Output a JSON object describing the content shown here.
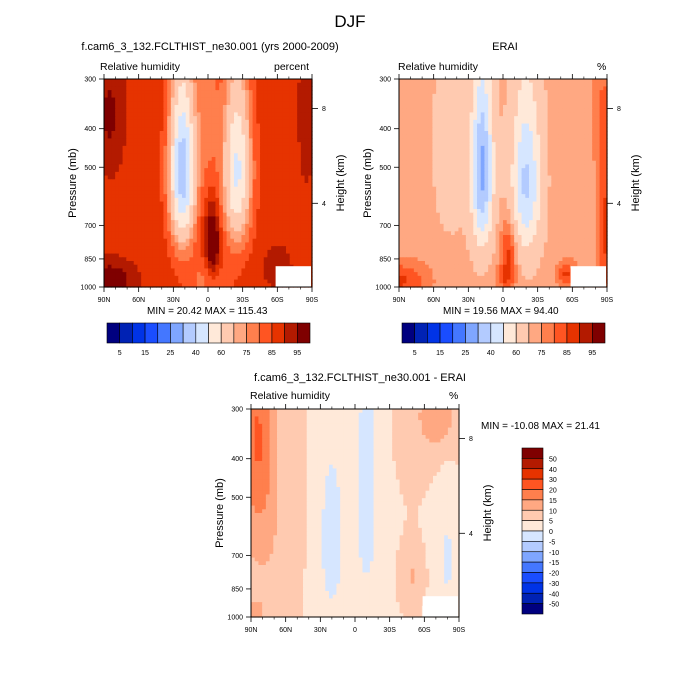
{
  "figure": {
    "title": "DJF"
  },
  "chart_data": [
    {
      "type": "heatmap",
      "panel": "model",
      "title": "f.cam6_3_132.FCLTHIST_ne30.001 (yrs 2000-2009)",
      "left_string": "Relative humidity",
      "right_string": "percent",
      "xlabel": "",
      "ylabel": "Pressure (mb)",
      "y2label": "Height (km)",
      "x_ticks": [
        "90N",
        "60N",
        "30N",
        "0",
        "30S",
        "60S",
        "90S"
      ],
      "x_range": [
        90,
        -90
      ],
      "y_ticks": [
        "300",
        "400",
        "500",
        "700",
        "850",
        "1000"
      ],
      "y_tick_values": [
        300,
        400,
        500,
        700,
        850,
        1000
      ],
      "y_range_mb": [
        300,
        1000
      ],
      "y2_ticks": [
        "8",
        "4"
      ],
      "min_label": "MIN =  20.42  MAX = 115.43",
      "min": 20.42,
      "max": 115.43,
      "colorbar_labels": [
        "5",
        "15",
        "25",
        "40",
        "60",
        "75",
        "85",
        "95"
      ],
      "colorbar_orientation": "horizontal"
    },
    {
      "type": "heatmap",
      "panel": "obs",
      "title": "ERAI",
      "left_string": "Relative humidity",
      "right_string": "%",
      "xlabel": "",
      "ylabel": "Pressure (mb)",
      "y2label": "Height (km)",
      "x_ticks": [
        "90N",
        "60N",
        "30N",
        "0",
        "30S",
        "60S",
        "90S"
      ],
      "x_range": [
        90,
        -90
      ],
      "y_ticks": [
        "300",
        "400",
        "500",
        "700",
        "850",
        "1000"
      ],
      "y_tick_values": [
        300,
        400,
        500,
        700,
        850,
        1000
      ],
      "y_range_mb": [
        300,
        1000
      ],
      "y2_ticks": [
        "8",
        "4"
      ],
      "min_label": "MIN =  19.56  MAX =  94.40",
      "min": 19.56,
      "max": 94.4,
      "colorbar_labels": [
        "5",
        "15",
        "25",
        "40",
        "60",
        "75",
        "85",
        "95"
      ],
      "colorbar_orientation": "horizontal"
    },
    {
      "type": "heatmap",
      "panel": "diff",
      "title": "f.cam6_3_132.FCLTHIST_ne30.001 - ERAI",
      "left_string": "Relative humidity",
      "right_string": "%",
      "xlabel": "",
      "ylabel": "Pressure (mb)",
      "y2label": "Height (km)",
      "x_ticks": [
        "90N",
        "60N",
        "30N",
        "0",
        "30S",
        "60S",
        "90S"
      ],
      "x_range": [
        90,
        -90
      ],
      "y_ticks": [
        "300",
        "400",
        "500",
        "700",
        "850",
        "1000"
      ],
      "y_tick_values": [
        300,
        400,
        500,
        700,
        850,
        1000
      ],
      "y_range_mb": [
        300,
        1000
      ],
      "y2_ticks": [
        "8",
        "4"
      ],
      "min_label": "MIN = -10.08  MAX =  21.41",
      "min": -10.08,
      "max": 21.41,
      "colorbar_labels": [
        "50",
        "40",
        "30",
        "20",
        "15",
        "10",
        "5",
        "0",
        "-5",
        "-10",
        "-15",
        "-20",
        "-30",
        "-40",
        "-50"
      ],
      "colorbar_orientation": "vertical"
    }
  ],
  "colors": {
    "abs_palette": [
      "#00007f",
      "#0022b4",
      "#0033e6",
      "#1a4dff",
      "#4477ff",
      "#7fa6ff",
      "#b3cbff",
      "#d6e6ff",
      "#ffe9d9",
      "#ffcab0",
      "#ffa882",
      "#ff7f4d",
      "#ff5522",
      "#e63300",
      "#b31a00",
      "#7f0000"
    ],
    "diff_palette": [
      "#7f0000",
      "#b31a00",
      "#e63300",
      "#ff5522",
      "#ff7f4d",
      "#ffa882",
      "#ffcab0",
      "#ffe9d9",
      "#d6e6ff",
      "#b3cbff",
      "#7fa6ff",
      "#4477ff",
      "#1a4dff",
      "#0033e6",
      "#0022b4",
      "#00007f"
    ]
  }
}
